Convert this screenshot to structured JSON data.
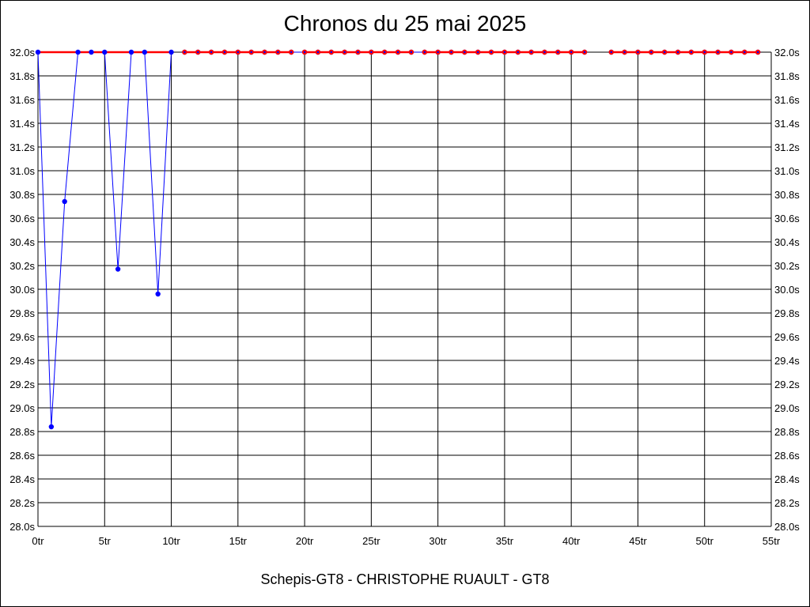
{
  "chart_data": {
    "type": "line",
    "title": "Chronos du 25 mai 2025",
    "subtitle": "Schepis-GT8 - CHRISTOPHE RUAULT - GT8",
    "xlabel": "",
    "ylabel": "",
    "xlim": [
      0,
      55
    ],
    "ylim": [
      28.0,
      32.0
    ],
    "x_ticks": [
      0,
      5,
      10,
      15,
      20,
      25,
      30,
      35,
      40,
      45,
      50,
      55
    ],
    "x_tick_labels": [
      "0tr",
      "5tr",
      "10tr",
      "15tr",
      "20tr",
      "25tr",
      "30tr",
      "35tr",
      "40tr",
      "45tr",
      "50tr",
      "55tr"
    ],
    "y_ticks": [
      28.0,
      28.2,
      28.4,
      28.6,
      28.8,
      29.0,
      29.2,
      29.4,
      29.6,
      29.8,
      30.0,
      30.2,
      30.4,
      30.6,
      30.8,
      31.0,
      31.2,
      31.4,
      31.6,
      31.8,
      32.0
    ],
    "y_tick_labels": [
      "28.0s",
      "28.2s",
      "28.4s",
      "28.6s",
      "28.8s",
      "29.0s",
      "29.2s",
      "29.4s",
      "29.6s",
      "29.8s",
      "30.0s",
      "30.2s",
      "30.4s",
      "30.6s",
      "30.8s",
      "31.0s",
      "31.2s",
      "31.4s",
      "31.6s",
      "31.8s",
      "32.0s"
    ],
    "grid": true,
    "series": [
      {
        "color": "#0000ff",
        "segments": [
          [
            [
              0,
              32.0
            ],
            [
              1,
              28.84
            ],
            [
              2,
              30.74
            ],
            [
              3,
              32.0
            ],
            [
              4,
              32.0
            ],
            [
              5,
              32.0
            ],
            [
              6,
              30.17
            ],
            [
              7,
              32.0
            ],
            [
              8,
              32.0
            ],
            [
              9,
              29.96
            ],
            [
              10,
              32.0
            ]
          ],
          [
            [
              11,
              32.0
            ],
            [
              12,
              32.0
            ],
            [
              13,
              32.0
            ],
            [
              14,
              32.0
            ],
            [
              15,
              32.0
            ],
            [
              16,
              32.0
            ],
            [
              17,
              32.0
            ],
            [
              18,
              32.0
            ],
            [
              19,
              32.0
            ],
            [
              20,
              32.0
            ],
            [
              21,
              32.0
            ],
            [
              22,
              32.0
            ],
            [
              23,
              32.0
            ],
            [
              24,
              32.0
            ],
            [
              25,
              32.0
            ],
            [
              26,
              32.0
            ],
            [
              27,
              32.0
            ],
            [
              28,
              32.0
            ],
            [
              29,
              32.0
            ],
            [
              30,
              32.0
            ],
            [
              31,
              32.0
            ],
            [
              32,
              32.0
            ],
            [
              33,
              32.0
            ],
            [
              34,
              32.0
            ],
            [
              35,
              32.0
            ],
            [
              36,
              32.0
            ],
            [
              37,
              32.0
            ],
            [
              38,
              32.0
            ],
            [
              39,
              32.0
            ],
            [
              40,
              32.0
            ],
            [
              41,
              32.0
            ]
          ],
          [
            [
              43,
              32.0
            ],
            [
              44,
              32.0
            ],
            [
              45,
              32.0
            ],
            [
              46,
              32.0
            ],
            [
              47,
              32.0
            ],
            [
              48,
              32.0
            ],
            [
              49,
              32.0
            ],
            [
              50,
              32.0
            ],
            [
              51,
              32.0
            ],
            [
              52,
              32.0
            ],
            [
              53,
              32.0
            ],
            [
              54,
              32.0
            ]
          ]
        ]
      },
      {
        "color": "#ff0000",
        "segments": [
          [
            [
              0,
              32.0
            ],
            [
              10,
              32.0
            ]
          ],
          [
            [
              11,
              32.0
            ],
            [
              19,
              32.0
            ]
          ],
          [
            [
              20,
              32.0
            ],
            [
              28,
              32.0
            ]
          ],
          [
            [
              29,
              32.0
            ],
            [
              41,
              32.0
            ]
          ],
          [
            [
              43,
              32.0
            ],
            [
              54,
              32.0
            ]
          ]
        ],
        "points": [
          11,
          12,
          13,
          14,
          15,
          16,
          17,
          18,
          19,
          20,
          21,
          22,
          23,
          24,
          25,
          26,
          27,
          28,
          29,
          30,
          31,
          32,
          33,
          34,
          35,
          36,
          37,
          38,
          39,
          40,
          41,
          43,
          44,
          45,
          46,
          47,
          48,
          49,
          50,
          51,
          52,
          53,
          54
        ]
      }
    ]
  }
}
